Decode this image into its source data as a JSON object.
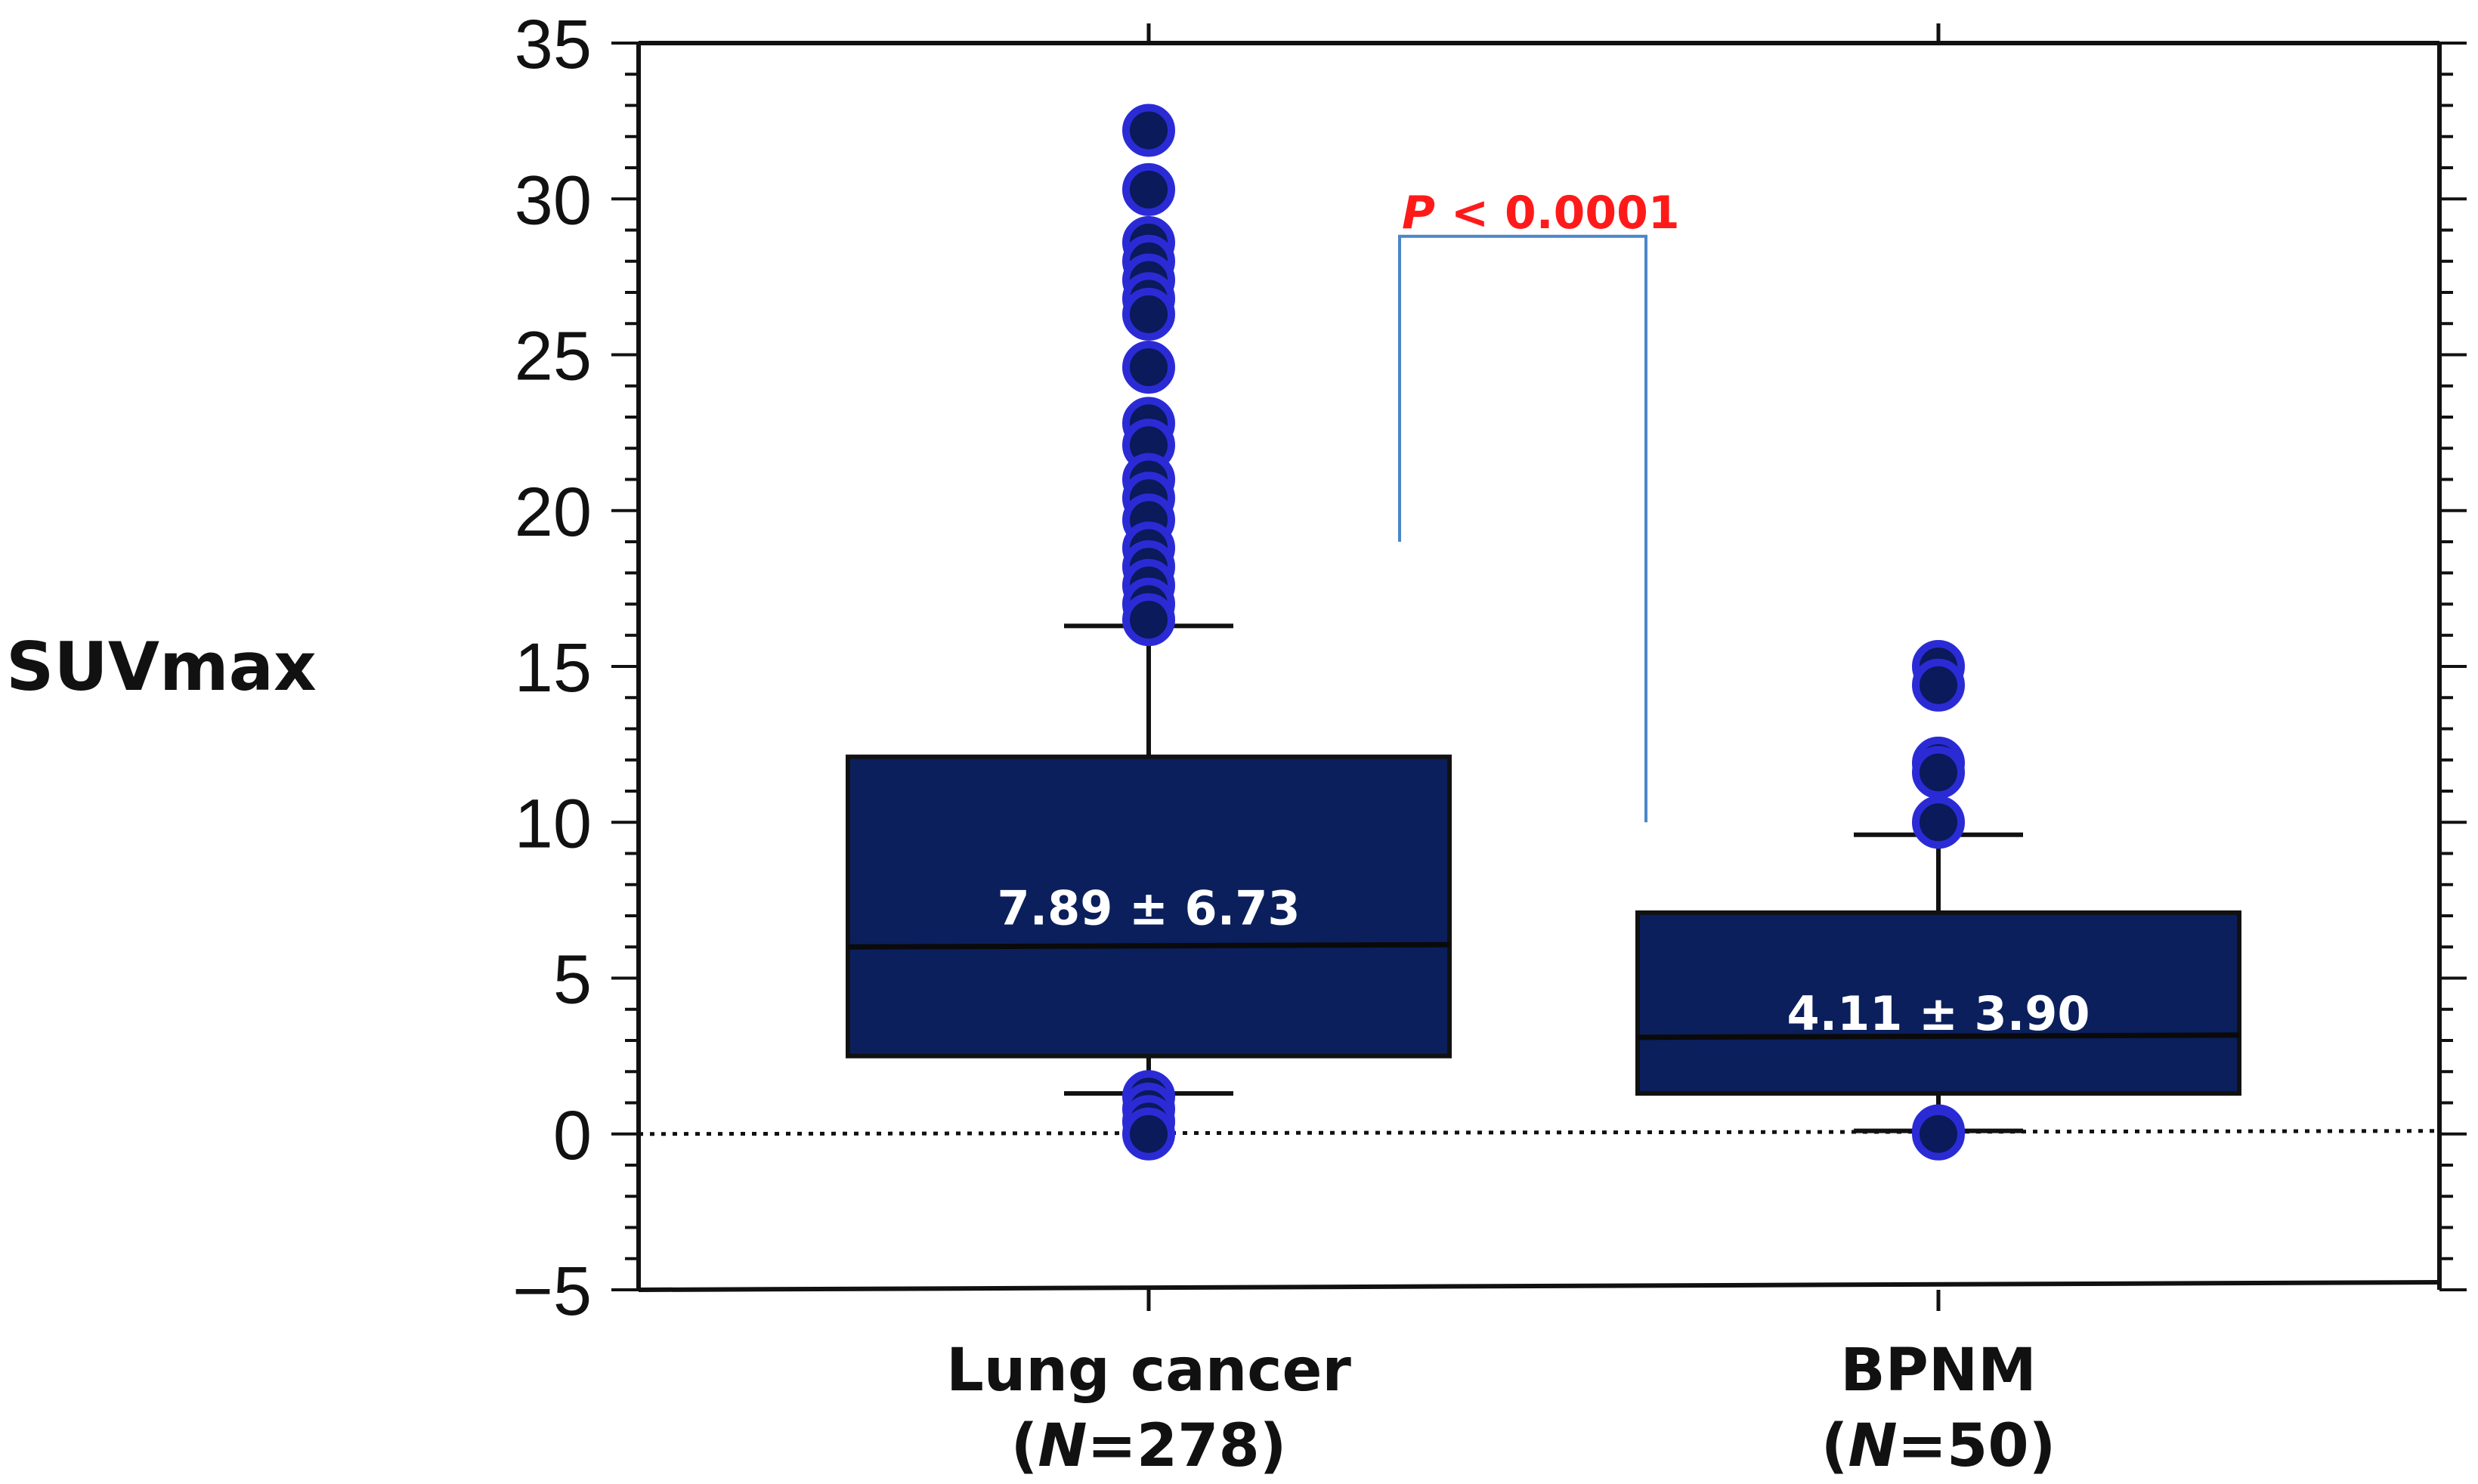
{
  "chart_data": {
    "type": "boxplot",
    "ylabel": "SUVmax",
    "ylim": [
      -5,
      35
    ],
    "yticks": [
      -5,
      0,
      5,
      10,
      15,
      20,
      25,
      30,
      35
    ],
    "ytick_labels": [
      "−5",
      "0",
      "5",
      "10",
      "15",
      "20",
      "25",
      "30",
      "35"
    ],
    "reference_line_y": 0,
    "colors": {
      "box": "#0b1f5c",
      "outlier": "#2b2bd6",
      "outlier_core": "#0a1a5a",
      "bracket": "#4a86c8",
      "pvalue": "#ff1a1a"
    },
    "groups": [
      {
        "name": "Lung cancer",
        "n_label": "N",
        "n_value": "=278)",
        "whisker_low": 1.3,
        "q1": 2.5,
        "median": 6.0,
        "q3": 12.1,
        "whisker_high": 16.3,
        "mean_sd_label": "7.89 ± 6.73",
        "outliers": [
          32.2,
          30.3,
          28.6,
          28.0,
          27.4,
          26.8,
          26.3,
          24.6,
          22.8,
          22.1,
          21.0,
          20.4,
          19.7,
          18.8,
          18.2,
          17.6,
          17.0,
          16.5,
          1.2,
          0.8,
          0.4,
          0.0
        ]
      },
      {
        "name": "BPNM",
        "n_label": "N",
        "n_value": "=50)",
        "whisker_low": 0.1,
        "q1": 1.3,
        "median": 3.1,
        "q3": 7.1,
        "whisker_high": 9.6,
        "mean_sd_label": "4.11 ± 3.90",
        "outliers": [
          15.0,
          14.4,
          11.9,
          11.6,
          10.0,
          0.1,
          0.0
        ]
      }
    ],
    "comparison": {
      "p_symbol": "P",
      "p_rest": " < 0.0001",
      "left_end_y": 19.0,
      "right_end_y": 10.0,
      "top_y": 28.8
    }
  }
}
